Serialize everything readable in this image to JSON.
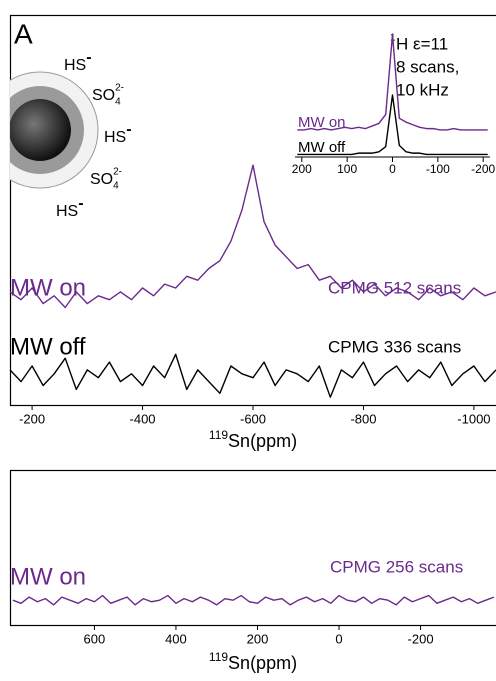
{
  "figure": {
    "panel": "A",
    "species": [
      {
        "text": "HS",
        "sup": "-"
      },
      {
        "text": "SO",
        "sub": "4",
        "sup": "2-"
      },
      {
        "text": "HS",
        "sup": "-"
      },
      {
        "text": "SO",
        "sub": "4",
        "sup": "2-"
      },
      {
        "text": "HS",
        "sup": "-"
      }
    ],
    "inset_note": {
      "sup": "1",
      "lines": [
        "H ε=11",
        "8 scans,",
        "10 kHz"
      ]
    }
  },
  "chart_data": [
    {
      "type": "line",
      "xlabel_sup": "119",
      "xlabel": "Sn(ppm)",
      "x": [
        -160,
        -180,
        -200,
        -220,
        -240,
        -260,
        -280,
        -300,
        -320,
        -340,
        -360,
        -380,
        -400,
        -420,
        -440,
        -460,
        -480,
        -500,
        -520,
        -540,
        -560,
        -580,
        -600,
        -620,
        -640,
        -660,
        -680,
        -700,
        -720,
        -740,
        -760,
        -780,
        -800,
        -820,
        -840,
        -860,
        -880,
        -900,
        -920,
        -940,
        -960,
        -980,
        -1000,
        -1020,
        -1040
      ],
      "xlim": [
        -160,
        -1040
      ],
      "xticks": [
        -200,
        -400,
        -600,
        -800,
        -1000
      ],
      "ylim": [
        0,
        100
      ],
      "series": [
        {
          "name": "MW on",
          "annotation": "CPMG 512 scans",
          "color": "#6a2a8c",
          "values": [
            29,
            27,
            30,
            26,
            28,
            25,
            29,
            26,
            28,
            27,
            29,
            27,
            30,
            28,
            31,
            30,
            33,
            32,
            35,
            37,
            42,
            50,
            61.5,
            47,
            41,
            38,
            35,
            36,
            32,
            33,
            30,
            32,
            29,
            31,
            28,
            30,
            29,
            27,
            30,
            28,
            29,
            27,
            30,
            28,
            29
          ]
        },
        {
          "name": "MW off",
          "annotation": "CPMG 336  scans",
          "color": "#000000",
          "values": [
            9,
            6,
            10,
            5,
            8,
            12,
            4,
            9,
            7,
            11,
            6,
            8,
            5,
            10,
            7,
            13,
            4,
            9,
            6,
            3,
            10,
            8,
            7,
            11,
            5,
            9,
            8,
            6,
            10,
            2,
            9,
            7,
            11,
            5,
            8,
            10,
            6,
            9,
            7,
            11,
            5,
            8,
            10,
            6,
            9
          ]
        }
      ]
    },
    {
      "type": "line",
      "x": [
        210,
        195,
        180,
        165,
        150,
        135,
        120,
        105,
        90,
        75,
        60,
        45,
        30,
        15,
        0,
        -15,
        -30,
        -45,
        -60,
        -75,
        -90,
        -105,
        -120,
        -135,
        -150,
        -165,
        -180,
        -195,
        -210
      ],
      "xlim": [
        215,
        -215
      ],
      "xticks": [
        200,
        100,
        0,
        -100,
        -200
      ],
      "ylim": [
        0,
        100
      ],
      "series": [
        {
          "name": "MW on",
          "color": "#6a2a8c",
          "values": [
            21,
            21,
            22,
            21,
            22,
            21,
            22,
            23,
            22,
            23,
            22,
            24,
            26,
            33,
            95,
            30,
            27,
            25,
            23,
            22,
            22,
            21,
            21,
            22,
            21,
            21,
            21,
            21,
            21
          ]
        },
        {
          "name": "MW off",
          "color": "#000000",
          "values": [
            2,
            2,
            2,
            2,
            2,
            2,
            2,
            2,
            2,
            3,
            3,
            3,
            4,
            8,
            48,
            9,
            4,
            3,
            3,
            2,
            2,
            2,
            2,
            2,
            2,
            2,
            2,
            2,
            2
          ]
        }
      ]
    },
    {
      "type": "line",
      "xlabel_sup": "119",
      "xlabel": "Sn(ppm)",
      "x": [
        800,
        780,
        760,
        740,
        720,
        700,
        680,
        660,
        640,
        620,
        600,
        580,
        560,
        540,
        520,
        500,
        480,
        460,
        440,
        420,
        400,
        380,
        360,
        340,
        320,
        300,
        280,
        260,
        240,
        220,
        200,
        180,
        160,
        140,
        120,
        100,
        80,
        60,
        40,
        20,
        0,
        -20,
        -40,
        -60,
        -80,
        -100,
        -120,
        -140,
        -160,
        -180,
        -200,
        -220,
        -240,
        -260,
        -280,
        -300,
        -320,
        -340,
        -360,
        -380
      ],
      "xlim": [
        807,
        -385
      ],
      "xticks": [
        600,
        400,
        200,
        0,
        -200
      ],
      "ylim": [
        0,
        100
      ],
      "series": [
        {
          "name": "MW on",
          "annotation": "CPMG 256 scans",
          "color": "#6a2a8c",
          "values": [
            16,
            14,
            18,
            15,
            17,
            13,
            18,
            16,
            14,
            17,
            15,
            19,
            14,
            16,
            18,
            13,
            17,
            15,
            16,
            19,
            14,
            17,
            15,
            18,
            16,
            13,
            17,
            16,
            19,
            15,
            14,
            18,
            16,
            17,
            13,
            16,
            18,
            15,
            17,
            14,
            19,
            16,
            15,
            18,
            14,
            17,
            16,
            13,
            18,
            15,
            17,
            19,
            14,
            16,
            18,
            15,
            17,
            14,
            16,
            18
          ]
        }
      ]
    }
  ]
}
